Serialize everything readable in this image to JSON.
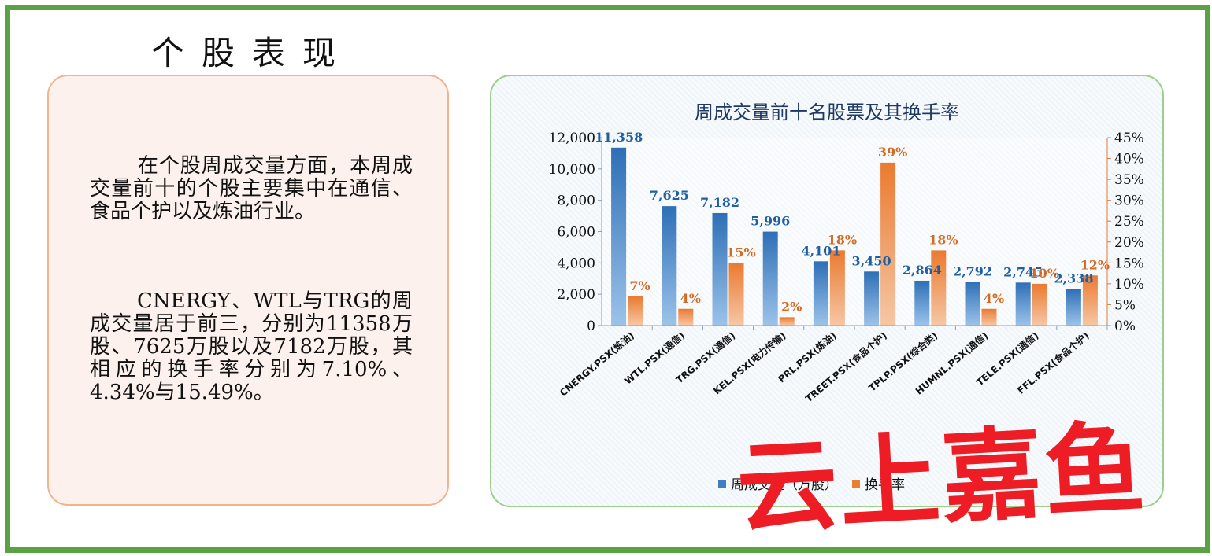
{
  "heading": "个股表现",
  "paragraph1": "在个股周成交量方面，本周成交量前十的个股主要集中在通信、食品个护以及炼油行业。",
  "paragraph2": "CNERGY、WTL与TRG的周成交量居于前三，分别为11358万股、7625万股以及7182万股，其相应的换手率分别为7.10%、4.34%与15.49%。",
  "watermark": "云上嘉鱼",
  "chart_data": {
    "type": "bar",
    "title": "周成交量前十名股票及其换手率",
    "categories": [
      "CNERGY.PSX(炼油)",
      "WTL.PSX(通信)",
      "TRG.PSX(通信)",
      "KEL.PSX(电力传输)",
      "PRL.PSX(炼油)",
      "TREET.PSX(食品个护)",
      "TPLP.PSX(综合类)",
      "HUMNL.PSX(通信)",
      "TELE.PSX(通信)",
      "FFL.PSX(食品个护)"
    ],
    "series": [
      {
        "name": "周成交量（万股）",
        "axis": "left",
        "color": "#3d7fc4",
        "values": [
          11358,
          7625,
          7182,
          5996,
          4101,
          3450,
          2864,
          2792,
          2745,
          2338
        ],
        "labels": [
          "11,358",
          "7,625",
          "7,182",
          "5,996",
          "4,101",
          "3,450",
          "2,864",
          "2,792",
          "2,745",
          "2,338"
        ]
      },
      {
        "name": "换手率",
        "axis": "right",
        "color": "#ed7d31",
        "values": [
          7,
          4,
          15,
          2,
          18,
          39,
          18,
          4,
          10,
          12
        ],
        "labels": [
          "7%",
          "4%",
          "15%",
          "2%",
          "18%",
          "39%",
          "18%",
          "4%",
          "10%",
          "12%"
        ]
      }
    ],
    "ylim": [
      0,
      12000
    ],
    "y_ticks": [
      "0",
      "2,000",
      "4,000",
      "6,000",
      "8,000",
      "10,000",
      "12,000"
    ],
    "y2lim": [
      0,
      45
    ],
    "y2_ticks": [
      "0%",
      "5%",
      "10%",
      "15%",
      "20%",
      "25%",
      "30%",
      "35%",
      "40%",
      "45%"
    ],
    "legend": "bottom",
    "label_color_left": "#1f5fa0",
    "label_color_right": "#d56a23"
  }
}
